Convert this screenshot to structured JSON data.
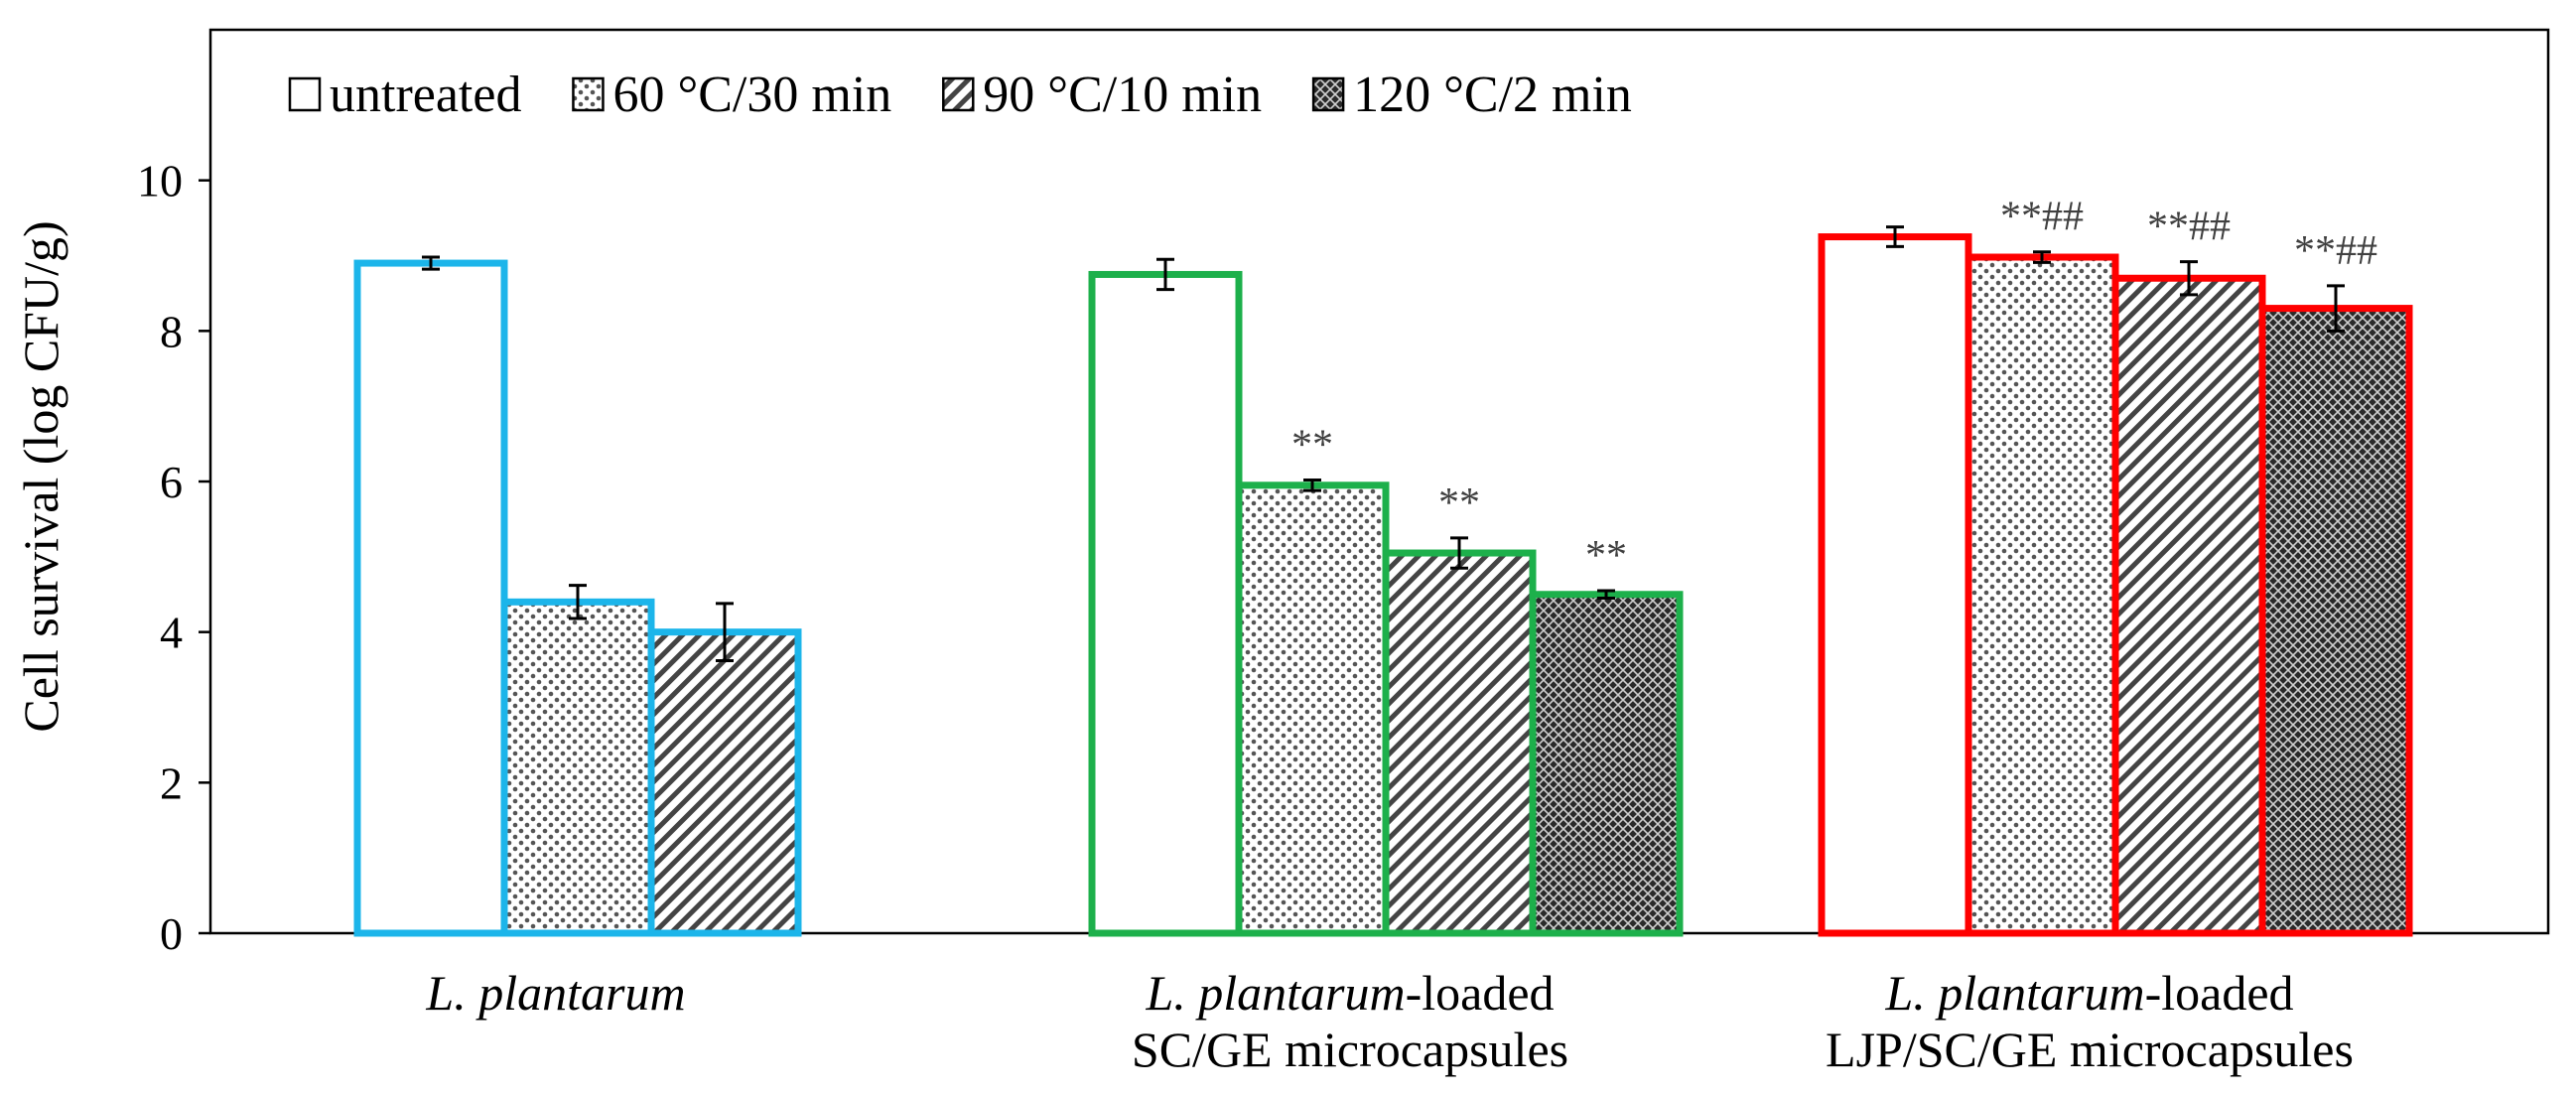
{
  "chart_data": {
    "type": "bar",
    "title": "",
    "xlabel": "",
    "ylabel": "Cell survival (log CFU/g)",
    "ylim": [
      0,
      12
    ],
    "yticks": [
      0,
      2,
      4,
      6,
      8,
      10
    ],
    "grid": false,
    "legend_position": "top-left",
    "categories": [
      {
        "lines": [
          {
            "italic": "L. plantarum",
            "rest": ""
          }
        ],
        "color": "#1CB5EA"
      },
      {
        "lines": [
          {
            "italic": "L. plantarum",
            "rest": "-loaded"
          },
          {
            "italic": "",
            "rest": "SC/GE microcapsules"
          }
        ],
        "color": "#1DB04B"
      },
      {
        "lines": [
          {
            "italic": "L. plantarum",
            "rest": "-loaded"
          },
          {
            "italic": "",
            "rest": "LJP/SC/GE microcapsules"
          }
        ],
        "color": "#FF0000"
      }
    ],
    "series": [
      {
        "name": "untreated",
        "pattern": "none",
        "values": [
          8.9,
          8.75,
          9.25
        ],
        "errors": [
          0.08,
          0.2,
          0.13
        ],
        "annotations": [
          "",
          "",
          ""
        ]
      },
      {
        "name": "60 °C/30 min",
        "pattern": "dots",
        "values": [
          4.4,
          5.95,
          8.98
        ],
        "errors": [
          0.22,
          0.07,
          0.07
        ],
        "annotations": [
          "",
          "**",
          "**##"
        ]
      },
      {
        "name": "90 °C/10 min",
        "pattern": "diag",
        "values": [
          4.0,
          5.05,
          8.7
        ],
        "errors": [
          0.38,
          0.2,
          0.22
        ],
        "annotations": [
          "",
          "**",
          "**##"
        ]
      },
      {
        "name": "120 °C/2 min",
        "pattern": "cross",
        "values": [
          null,
          4.5,
          8.3
        ],
        "errors": [
          null,
          0.05,
          0.3
        ],
        "annotations": [
          "",
          "**",
          "**##"
        ]
      }
    ]
  }
}
